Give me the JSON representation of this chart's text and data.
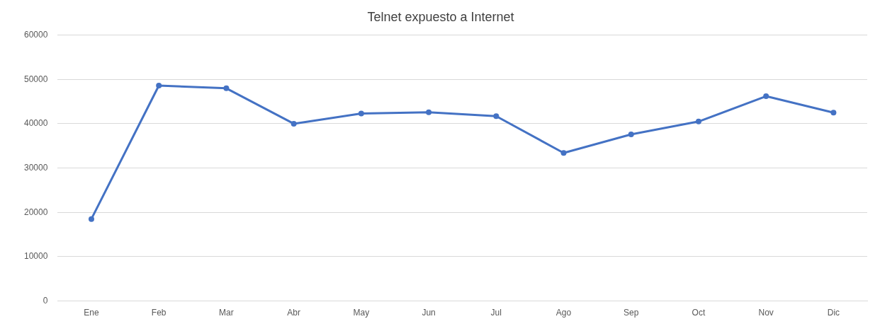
{
  "chart_data": {
    "type": "line",
    "title": "Telnet expuesto a Internet",
    "categories": [
      "Ene",
      "Feb",
      "Mar",
      "Abr",
      "May",
      "Jun",
      "Jul",
      "Ago",
      "Sep",
      "Oct",
      "Nov",
      "Dic"
    ],
    "series": [
      {
        "color": "#4472c4",
        "values": [
          18500,
          48600,
          48000,
          40000,
          42300,
          42600,
          41700,
          33400,
          37600,
          40500,
          46200,
          42500
        ]
      }
    ],
    "ylim": [
      0,
      60000
    ],
    "yticks": [
      0,
      10000,
      20000,
      30000,
      40000,
      50000,
      60000
    ],
    "grid": "y",
    "legend": false,
    "marker": "circle",
    "line_style": "solid"
  }
}
